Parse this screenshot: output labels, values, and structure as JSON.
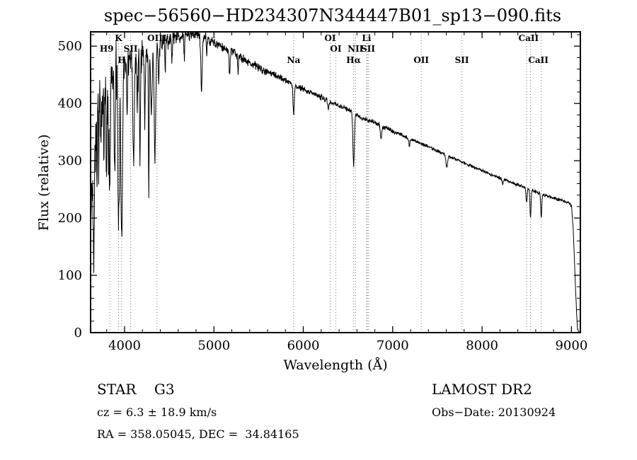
{
  "chart_data": {
    "type": "line",
    "title": "spec−56560−HD234307N344447B01_sp13−090.fits",
    "xlabel": "Wavelength (Å)",
    "ylabel": "Flux (relative)",
    "xlim": [
      3620,
      9100
    ],
    "ylim": [
      0,
      525
    ],
    "xticks": [
      4000,
      5000,
      6000,
      7000,
      8000,
      9000
    ],
    "yticks": [
      0,
      100,
      200,
      300,
      400,
      500
    ],
    "x_minor_step": 200,
    "y_minor_step": 20,
    "grid": false,
    "line_color": "#000000",
    "marker_line_color": "#777777",
    "spectrum": {
      "sample_step": 3,
      "noise_seed": 42,
      "envelope": [
        [
          3620,
          210
        ],
        [
          3660,
          300
        ],
        [
          3700,
          430
        ],
        [
          3730,
          460
        ],
        [
          3760,
          445
        ],
        [
          3800,
          460
        ],
        [
          3850,
          470
        ],
        [
          3900,
          478
        ],
        [
          3950,
          472
        ],
        [
          4000,
          480
        ],
        [
          4050,
          470
        ],
        [
          4100,
          465
        ],
        [
          4150,
          480
        ],
        [
          4200,
          490
        ],
        [
          4250,
          485
        ],
        [
          4300,
          488
        ],
        [
          4350,
          495
        ],
        [
          4400,
          505
        ],
        [
          4500,
          512
        ],
        [
          4600,
          516
        ],
        [
          4700,
          520
        ],
        [
          4800,
          523
        ],
        [
          4900,
          516
        ],
        [
          5000,
          506
        ],
        [
          5100,
          497
        ],
        [
          5200,
          491
        ],
        [
          5300,
          481
        ],
        [
          5400,
          471
        ],
        [
          5500,
          463
        ],
        [
          5600,
          455
        ],
        [
          5700,
          448
        ],
        [
          5800,
          441
        ],
        [
          5900,
          432
        ],
        [
          6000,
          425
        ],
        [
          6100,
          418
        ],
        [
          6200,
          411
        ],
        [
          6300,
          403
        ],
        [
          6400,
          396
        ],
        [
          6500,
          390
        ],
        [
          6600,
          379
        ],
        [
          6700,
          372
        ],
        [
          6800,
          366
        ],
        [
          6900,
          359
        ],
        [
          7000,
          352
        ],
        [
          7100,
          345
        ],
        [
          7200,
          338
        ],
        [
          7300,
          331
        ],
        [
          7400,
          325
        ],
        [
          7500,
          317
        ],
        [
          7600,
          310
        ],
        [
          7700,
          303
        ],
        [
          7800,
          296
        ],
        [
          7900,
          289
        ],
        [
          8000,
          283
        ],
        [
          8100,
          276
        ],
        [
          8200,
          270
        ],
        [
          8300,
          264
        ],
        [
          8400,
          258
        ],
        [
          8500,
          252
        ],
        [
          8600,
          246
        ],
        [
          8700,
          240
        ],
        [
          8800,
          235
        ],
        [
          8900,
          230
        ],
        [
          8960,
          227
        ],
        [
          9000,
          222
        ],
        [
          9020,
          180
        ],
        [
          9045,
          80
        ],
        [
          9065,
          10
        ],
        [
          9080,
          2
        ],
        [
          9100,
          0
        ]
      ],
      "noise_regions": [
        {
          "from": 3620,
          "to": 3950,
          "amp": 70
        },
        {
          "from": 3950,
          "to": 4200,
          "amp": 38
        },
        {
          "from": 4200,
          "to": 4600,
          "amp": 20
        },
        {
          "from": 4600,
          "to": 5000,
          "amp": 13
        },
        {
          "from": 5000,
          "to": 5600,
          "amp": 9
        },
        {
          "from": 5600,
          "to": 6300,
          "amp": 6.5
        },
        {
          "from": 6300,
          "to": 7200,
          "amp": 5
        },
        {
          "from": 7200,
          "to": 9100,
          "amp": 3.5
        }
      ],
      "absorption_lines": [
        {
          "center": 3656,
          "sigma": 6,
          "depth": 140
        },
        {
          "center": 3692,
          "sigma": 5,
          "depth": 120
        },
        {
          "center": 3712,
          "sigma": 5,
          "depth": 130
        },
        {
          "center": 3734,
          "sigma": 5,
          "depth": 150
        },
        {
          "center": 3750,
          "sigma": 4,
          "depth": 110
        },
        {
          "center": 3770,
          "sigma": 5,
          "depth": 140
        },
        {
          "center": 3798,
          "sigma": 6,
          "depth": 180
        },
        {
          "center": 3820,
          "sigma": 5,
          "depth": 120
        },
        {
          "center": 3835,
          "sigma": 7,
          "depth": 200
        },
        {
          "center": 3889,
          "sigma": 7,
          "depth": 210
        },
        {
          "center": 3933,
          "sigma": 9,
          "depth": 300
        },
        {
          "center": 3968,
          "sigma": 9,
          "depth": 320
        },
        {
          "center": 4026,
          "sigma": 5,
          "depth": 90
        },
        {
          "center": 4101,
          "sigma": 8,
          "depth": 175
        },
        {
          "center": 4144,
          "sigma": 5,
          "depth": 70
        },
        {
          "center": 4173,
          "sigma": 5,
          "depth": 180
        },
        {
          "center": 4226,
          "sigma": 5,
          "depth": 120
        },
        {
          "center": 4271,
          "sigma": 4,
          "depth": 250
        },
        {
          "center": 4300,
          "sigma": 8,
          "depth": 100
        },
        {
          "center": 4340,
          "sigma": 8,
          "depth": 190
        },
        {
          "center": 4383,
          "sigma": 5,
          "depth": 80
        },
        {
          "center": 4455,
          "sigma": 4,
          "depth": 55
        },
        {
          "center": 4531,
          "sigma": 4,
          "depth": 50
        },
        {
          "center": 4668,
          "sigma": 4,
          "depth": 40
        },
        {
          "center": 4861,
          "sigma": 8,
          "depth": 95
        },
        {
          "center": 4920,
          "sigma": 4,
          "depth": 35
        },
        {
          "center": 5175,
          "sigma": 6,
          "depth": 40
        },
        {
          "center": 5270,
          "sigma": 5,
          "depth": 30
        },
        {
          "center": 5892,
          "sigma": 7,
          "depth": 55
        },
        {
          "center": 6278,
          "sigma": 7,
          "depth": 12
        },
        {
          "center": 6563,
          "sigma": 8,
          "depth": 92
        },
        {
          "center": 6870,
          "sigma": 8,
          "depth": 22
        },
        {
          "center": 7186,
          "sigma": 8,
          "depth": 12
        },
        {
          "center": 7605,
          "sigma": 10,
          "depth": 20
        },
        {
          "center": 8230,
          "sigma": 6,
          "depth": 10
        },
        {
          "center": 8498,
          "sigma": 6,
          "depth": 25
        },
        {
          "center": 8542,
          "sigma": 6,
          "depth": 48
        },
        {
          "center": 8662,
          "sigma": 6,
          "depth": 42
        }
      ]
    },
    "line_markers": {
      "rows_y_offset": [
        13,
        28,
        44
      ],
      "dotted_lines": [
        3835,
        3933,
        3968,
        4068,
        4363,
        5892,
        6300,
        6363,
        6563,
        6583,
        6708,
        6716,
        6731,
        7320,
        7774,
        8498,
        8542,
        8662
      ],
      "labels": [
        {
          "wavelength": 3800,
          "text": "H9",
          "row": 1
        },
        {
          "wavelength": 3933,
          "text": "K",
          "row": 0
        },
        {
          "wavelength": 3968,
          "text": "H",
          "row": 2
        },
        {
          "wavelength": 4068,
          "text": "SII",
          "row": 1
        },
        {
          "wavelength": 4363,
          "text": "OIII",
          "row": 0
        },
        {
          "wavelength": 5892,
          "text": "Na",
          "row": 2
        },
        {
          "wavelength": 6300,
          "text": "OI",
          "row": 0
        },
        {
          "wavelength": 6363,
          "text": "OI",
          "row": 1
        },
        {
          "wavelength": 6563,
          "text": "Hα",
          "row": 2
        },
        {
          "wavelength": 6583,
          "text": "NII",
          "row": 1
        },
        {
          "wavelength": 6708,
          "text": "Li",
          "row": 0
        },
        {
          "wavelength": 6724,
          "text": "SII",
          "row": 1
        },
        {
          "wavelength": 7320,
          "text": "OII",
          "row": 2
        },
        {
          "wavelength": 7774,
          "text": "SII",
          "row": 2
        },
        {
          "wavelength": 8520,
          "text": "CaII",
          "row": 0
        },
        {
          "wavelength": 8630,
          "text": "CaII",
          "row": 2
        }
      ]
    }
  },
  "footer": {
    "class_line": "STAR    G3",
    "survey": "LAMOST DR2",
    "cz": "cz = 6.3 ± 18.9 km/s",
    "obs_date": "Obs−Date: 20130924",
    "ra_dec": "RA = 358.05045, DEC =  34.84165"
  }
}
